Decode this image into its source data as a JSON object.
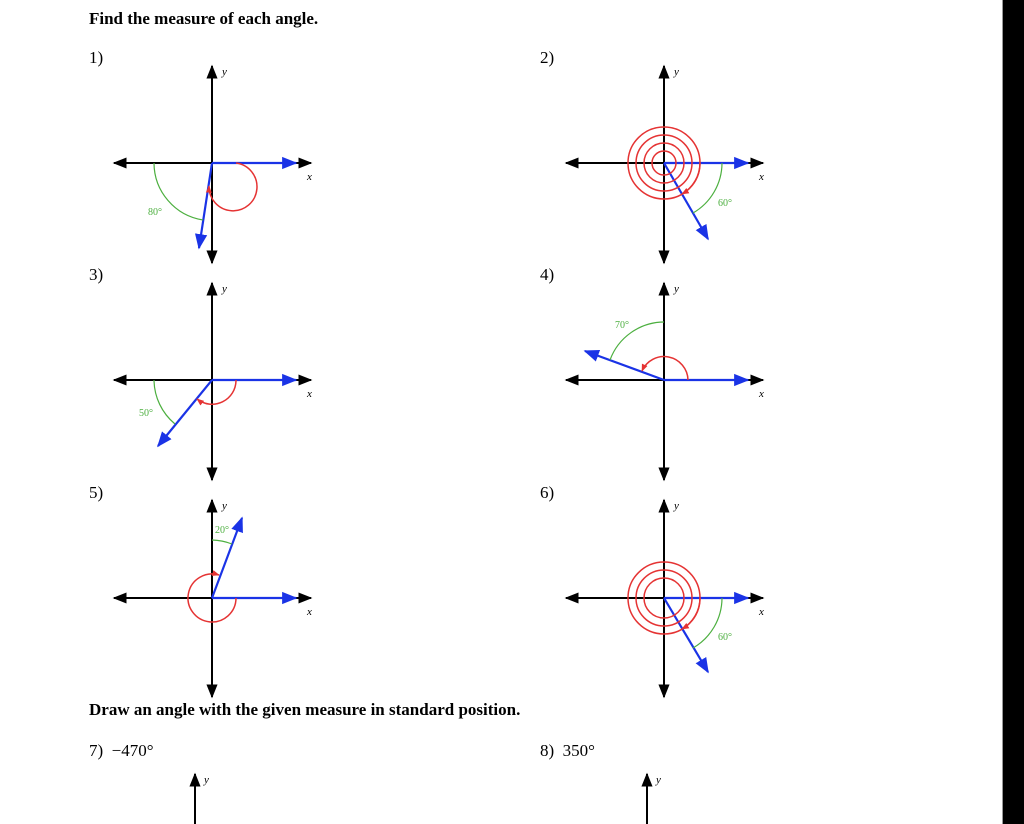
{
  "section1": {
    "heading": "Find the measure of each angle."
  },
  "section2": {
    "heading": "Draw an angle with the given measure in standard position."
  },
  "colors": {
    "axis": "#000000",
    "terminal_ray": "#1a33e6",
    "reference_arc": "#4caf3f",
    "rotation_arc": "#e53333"
  },
  "problems": [
    {
      "number": "1)",
      "reference_angle": "80°",
      "x_label": "x",
      "y_label": "y"
    },
    {
      "number": "2)",
      "reference_angle": "60°",
      "x_label": "x",
      "y_label": "y"
    },
    {
      "number": "3)",
      "reference_angle": "50°",
      "x_label": "x",
      "y_label": "y"
    },
    {
      "number": "4)",
      "reference_angle": "70°",
      "x_label": "x",
      "y_label": "y"
    },
    {
      "number": "5)",
      "reference_angle": "20°",
      "x_label": "x",
      "y_label": "y"
    },
    {
      "number": "6)",
      "reference_angle": "60°",
      "x_label": "x",
      "y_label": "y"
    }
  ],
  "draw_problems": [
    {
      "number": "7)",
      "measure": "−470°",
      "y_label": "y"
    },
    {
      "number": "8)",
      "measure": "350°",
      "y_label": "y"
    }
  ]
}
